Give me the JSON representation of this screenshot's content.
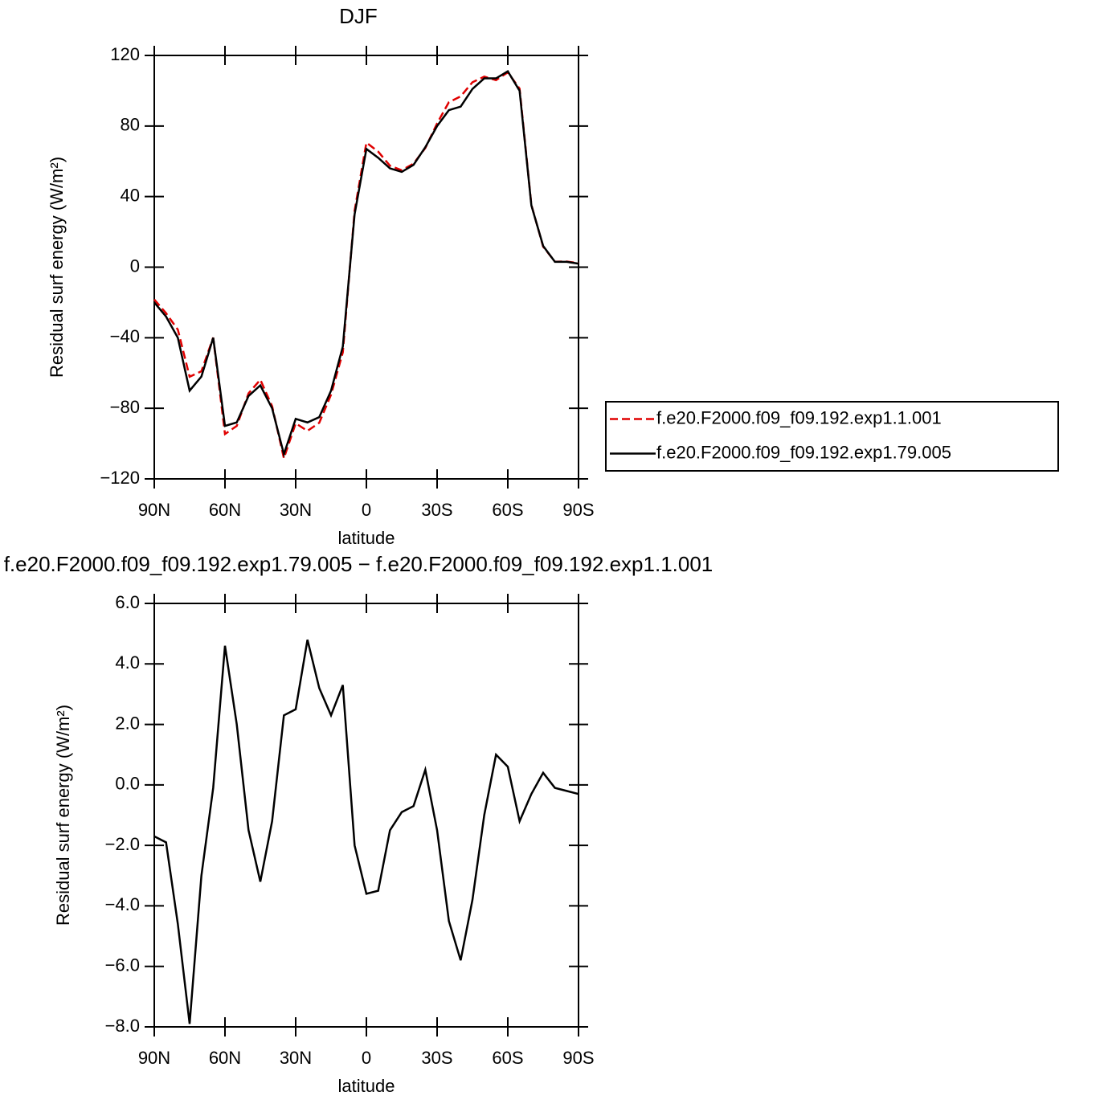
{
  "chart_data": [
    {
      "type": "line",
      "title": "DJF",
      "x_label": "latitude",
      "y_label": "Residual surf energy (W/m²)",
      "x": [
        90,
        85,
        80,
        75,
        70,
        65,
        60,
        55,
        50,
        45,
        40,
        35,
        30,
        25,
        20,
        15,
        10,
        5,
        0,
        -5,
        -10,
        -15,
        -20,
        -25,
        -30,
        -35,
        -40,
        -45,
        -50,
        -55,
        -60,
        -65,
        -70,
        -75,
        -80,
        -85,
        -90
      ],
      "xlim": [
        90,
        -90
      ],
      "xticks": [
        {
          "value": 90,
          "label": "90N"
        },
        {
          "value": 60,
          "label": "60N"
        },
        {
          "value": 30,
          "label": "30N"
        },
        0,
        {
          "value": -30,
          "label": "30S"
        },
        {
          "value": -60,
          "label": "60S"
        },
        {
          "value": -90,
          "label": "90S"
        }
      ],
      "ylim": [
        -120,
        120
      ],
      "yticks": [
        {
          "value": -120,
          "label": "−120"
        },
        {
          "value": -80,
          "label": "−80"
        },
        {
          "value": -40,
          "label": "−40"
        },
        0,
        40,
        80,
        120
      ],
      "legend": "right",
      "series": [
        {
          "name": "f.e20.F2000.f09_f09.192.exp1.1.001",
          "color": "#e00000",
          "dash": true,
          "values": [
            -18.3,
            -26.1,
            -35.4,
            -62.1,
            -59,
            -39.9,
            -94.6,
            -90,
            -71.5,
            -63.8,
            -78.8,
            -108.3,
            -88.5,
            -92.8,
            -88.2,
            -72.3,
            -48.3,
            32,
            70.6,
            65.5,
            57.5,
            54.9,
            58.7,
            67.5,
            81.5,
            93.5,
            96.8,
            104.8,
            108,
            106,
            110.4,
            101.2,
            35.3,
            11.6,
            3.1,
            3.2,
            2.3
          ]
        },
        {
          "name": "f.e20.F2000.f09_f09.192.exp1.79.005",
          "color": "#000000",
          "dash": false,
          "values": [
            -20,
            -28,
            -40,
            -70,
            -62,
            -40,
            -90,
            -88,
            -73,
            -67,
            -80,
            -106,
            -86,
            -88,
            -85,
            -70,
            -45,
            30,
            67,
            62,
            56,
            54,
            58,
            68,
            80,
            89,
            91,
            101,
            107,
            107,
            111,
            100,
            35,
            12,
            3,
            3,
            2
          ]
        }
      ]
    },
    {
      "type": "line",
      "title": "f.e20.F2000.f09_f09.192.exp1.79.005 − f.e20.F2000.f09_f09.192.exp1.1.001",
      "x_label": "latitude",
      "y_label": "Residual surf energy (W/m²)",
      "x": [
        90,
        85,
        80,
        75,
        70,
        65,
        60,
        55,
        50,
        45,
        40,
        35,
        30,
        25,
        20,
        15,
        10,
        5,
        0,
        -5,
        -10,
        -15,
        -20,
        -25,
        -30,
        -35,
        -40,
        -45,
        -50,
        -55,
        -60,
        -65,
        -70,
        -75,
        -80,
        -85,
        -90
      ],
      "xlim": [
        90,
        -90
      ],
      "xticks": [
        {
          "value": 90,
          "label": "90N"
        },
        {
          "value": 60,
          "label": "60N"
        },
        {
          "value": 30,
          "label": "30N"
        },
        0,
        {
          "value": -30,
          "label": "30S"
        },
        {
          "value": -60,
          "label": "60S"
        },
        {
          "value": -90,
          "label": "90S"
        }
      ],
      "ylim": [
        -8,
        6
      ],
      "yticks": [
        {
          "value": -8,
          "label": "−8.0"
        },
        {
          "value": -6,
          "label": "−6.0"
        },
        {
          "value": -4,
          "label": "−4.0"
        },
        {
          "value": -2,
          "label": "−2.0"
        },
        {
          "value": 0,
          "label": "0.0"
        },
        {
          "value": 2,
          "label": "2.0"
        },
        {
          "value": 4,
          "label": "4.0"
        },
        {
          "value": 6,
          "label": "6.0"
        }
      ],
      "series": [
        {
          "color": "#000000",
          "dash": false,
          "values": [
            -1.7,
            -1.9,
            -4.6,
            -7.9,
            -3,
            -0.1,
            4.6,
            2,
            -1.5,
            -3.2,
            -1.2,
            2.3,
            2.5,
            4.8,
            3.2,
            2.3,
            3.3,
            -2,
            -3.6,
            -3.5,
            -1.5,
            -0.9,
            -0.7,
            0.5,
            -1.5,
            -4.5,
            -5.8,
            -3.8,
            -1,
            1,
            0.6,
            -1.2,
            -0.3,
            0.4,
            -0.1,
            -0.2,
            -0.3
          ]
        }
      ]
    }
  ]
}
